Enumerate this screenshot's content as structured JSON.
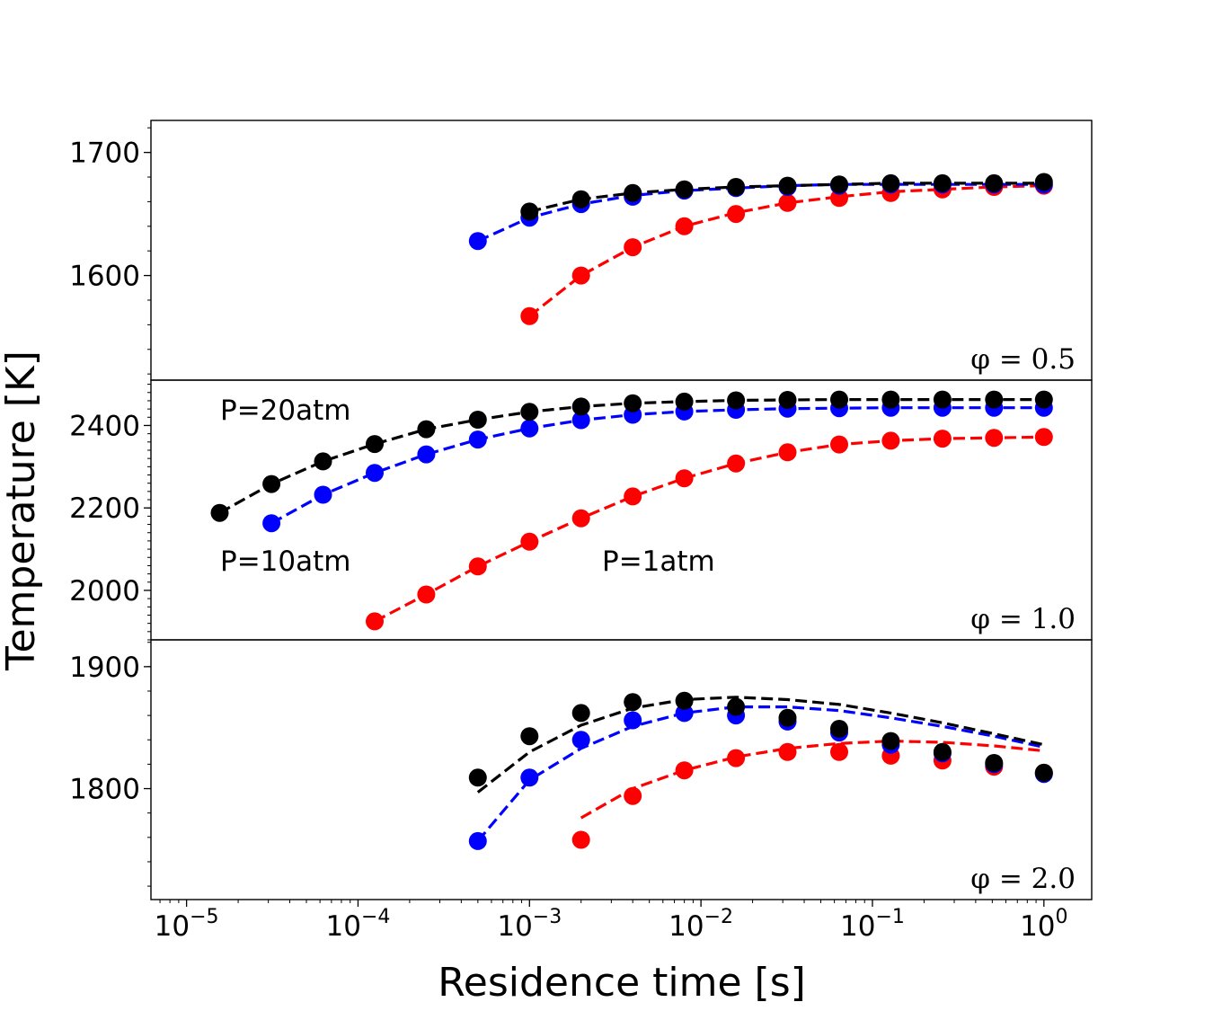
{
  "chart_data": {
    "type": "scatter",
    "xlabel": "Residence time [s]",
    "ylabel": "Temperature [K]",
    "xscale": "log",
    "xlim": [
      6.2e-06,
      1.9
    ],
    "x_ticks": [
      {
        "base": "10",
        "exp": "−5",
        "value": 1e-05
      },
      {
        "base": "10",
        "exp": "−4",
        "value": 0.0001
      },
      {
        "base": "10",
        "exp": "−3",
        "value": 0.001
      },
      {
        "base": "10",
        "exp": "−2",
        "value": 0.01
      },
      {
        "base": "10",
        "exp": "−1",
        "value": 0.1
      },
      {
        "base": "10",
        "exp": "0",
        "value": 1
      }
    ],
    "series_colors": {
      "P=1atm": "#ff0000",
      "P=10atm": "#0000ff",
      "P=20atm": "#000000"
    },
    "panels": [
      {
        "label": "φ = 0.5",
        "ylim": [
          1515,
          1726
        ],
        "yticks": [
          1600,
          1700
        ],
        "yticklabels": [
          "1600",
          "1700"
        ],
        "annotations": [],
        "series": [
          {
            "key": "P=1atm",
            "points": {
              "x": [
                0.001,
                0.002,
                0.004,
                0.008,
                0.016,
                0.032,
                0.064,
                0.128,
                0.256,
                0.512,
                1.0
              ],
              "y": [
                1567,
                1600,
                1623,
                1640,
                1650,
                1659,
                1663,
                1667,
                1670,
                1672,
                1673
              ]
            },
            "line": {
              "x": [
                0.001,
                0.002,
                0.004,
                0.008,
                0.016,
                0.032,
                0.064,
                0.128,
                0.256,
                0.512,
                1.0
              ],
              "y": [
                1567,
                1600,
                1623,
                1640,
                1651,
                1659,
                1664,
                1668,
                1670,
                1672,
                1673
              ]
            }
          },
          {
            "key": "P=10atm",
            "points": {
              "x": [
                0.0005,
                0.001,
                0.002,
                0.004,
                0.008,
                0.016,
                0.032,
                0.064,
                0.128,
                0.256,
                0.512,
                1.0
              ],
              "y": [
                1628,
                1647,
                1658,
                1664,
                1669,
                1671,
                1672,
                1673,
                1674,
                1674,
                1674,
                1674
              ]
            },
            "line": {
              "x": [
                0.0005,
                0.001,
                0.002,
                0.004,
                0.008,
                0.016,
                0.032,
                0.064,
                0.128,
                0.256,
                0.512,
                1.0
              ],
              "y": [
                1628,
                1647,
                1658,
                1665,
                1669,
                1671,
                1673,
                1674,
                1674,
                1674,
                1674,
                1674
              ]
            }
          },
          {
            "key": "P=20atm",
            "points": {
              "x": [
                0.001,
                0.002,
                0.004,
                0.008,
                0.016,
                0.032,
                0.064,
                0.128,
                0.256,
                0.512,
                1.0
              ],
              "y": [
                1652,
                1662,
                1667,
                1670,
                1672,
                1673,
                1674,
                1675,
                1675,
                1675,
                1676
              ]
            },
            "line": {
              "x": [
                0.001,
                0.002,
                0.004,
                0.008,
                0.016,
                0.032,
                0.064,
                0.128,
                0.256,
                0.512,
                1.0
              ],
              "y": [
                1652,
                1662,
                1667,
                1670,
                1672,
                1673,
                1674,
                1675,
                1675,
                1675,
                1675
              ]
            }
          }
        ]
      },
      {
        "label": "φ = 1.0",
        "ylim": [
          1880,
          2510
        ],
        "yticks": [
          2000,
          2200,
          2400
        ],
        "yticklabels": [
          "2000",
          "2200",
          "2400"
        ],
        "annotations": [
          "P=20atm",
          "P=10atm",
          "P=1atm"
        ],
        "series": [
          {
            "key": "P=1atm",
            "points": {
              "x": [
                0.000125,
                0.00025,
                0.0005,
                0.001,
                0.002,
                0.004,
                0.008,
                0.016,
                0.032,
                0.064,
                0.128,
                0.256,
                0.512,
                1.0
              ],
              "y": [
                1925,
                1990,
                2058,
                2118,
                2175,
                2228,
                2272,
                2308,
                2335,
                2354,
                2363,
                2368,
                2370,
                2372
              ]
            },
            "line": {
              "x": [
                0.000125,
                0.00025,
                0.0005,
                0.001,
                0.002,
                0.004,
                0.008,
                0.016,
                0.032,
                0.064,
                0.128,
                0.256,
                0.512,
                1.0
              ],
              "y": [
                1925,
                1990,
                2058,
                2118,
                2175,
                2228,
                2272,
                2308,
                2335,
                2354,
                2363,
                2368,
                2370,
                2372
              ]
            }
          },
          {
            "key": "P=10atm",
            "points": {
              "x": [
                3.125e-05,
                6.25e-05,
                0.000125,
                0.00025,
                0.0005,
                0.001,
                0.002,
                0.004,
                0.008,
                0.016,
                0.032,
                0.064,
                0.128,
                0.256,
                0.512,
                1.0
              ],
              "y": [
                2163,
                2232,
                2285,
                2330,
                2366,
                2393,
                2413,
                2426,
                2434,
                2438,
                2441,
                2442,
                2443,
                2443,
                2443,
                2443
              ]
            },
            "line": {
              "x": [
                3.125e-05,
                6.25e-05,
                0.000125,
                0.00025,
                0.0005,
                0.001,
                0.002,
                0.004,
                0.008,
                0.016,
                0.032,
                0.064,
                0.128,
                0.256,
                0.512,
                1.0
              ],
              "y": [
                2163,
                2232,
                2285,
                2330,
                2366,
                2393,
                2413,
                2426,
                2434,
                2438,
                2441,
                2442,
                2443,
                2443,
                2443,
                2443
              ]
            }
          },
          {
            "key": "P=20atm",
            "points": {
              "x": [
                1.56e-05,
                3.125e-05,
                6.25e-05,
                0.000125,
                0.00025,
                0.0005,
                0.001,
                0.002,
                0.004,
                0.008,
                0.016,
                0.032,
                0.064,
                0.128,
                0.256,
                0.512,
                1.0
              ],
              "y": [
                2188,
                2258,
                2313,
                2355,
                2391,
                2414,
                2433,
                2446,
                2454,
                2458,
                2461,
                2462,
                2463,
                2463,
                2463,
                2463,
                2463
              ]
            },
            "line": {
              "x": [
                1.56e-05,
                3.125e-05,
                6.25e-05,
                0.000125,
                0.00025,
                0.0005,
                0.001,
                0.002,
                0.004,
                0.008,
                0.016,
                0.032,
                0.064,
                0.128,
                0.256,
                0.512,
                1.0
              ],
              "y": [
                2188,
                2258,
                2313,
                2355,
                2391,
                2414,
                2433,
                2446,
                2454,
                2458,
                2461,
                2462,
                2463,
                2463,
                2463,
                2463,
                2463
              ]
            }
          }
        ]
      },
      {
        "label": "φ = 2.0",
        "ylim": [
          1709,
          1922
        ],
        "yticks": [
          1800,
          1900
        ],
        "yticklabels": [
          "1800",
          "1900"
        ],
        "annotations": [],
        "series": [
          {
            "key": "P=1atm",
            "points": {
              "x": [
                0.002,
                0.004,
                0.008,
                0.016,
                0.032,
                0.064,
                0.128,
                0.256,
                0.512,
                1.0
              ],
              "y": [
                1758,
                1794,
                1815,
                1825,
                1830,
                1830,
                1827,
                1823,
                1818,
                1813
              ]
            },
            "line": {
              "x": [
                0.002,
                0.004,
                0.008,
                0.016,
                0.032,
                0.064,
                0.128,
                0.256,
                0.512,
                1.0
              ],
              "y": [
                1776,
                1800,
                1815,
                1826,
                1833,
                1837,
                1839,
                1838,
                1835,
                1831
              ]
            }
          },
          {
            "key": "P=10atm",
            "points": {
              "x": [
                0.0005,
                0.001,
                0.002,
                0.004,
                0.008,
                0.016,
                0.032,
                0.064,
                0.128,
                0.256,
                0.512,
                1.0
              ],
              "y": [
                1757,
                1809,
                1840,
                1856,
                1862,
                1860,
                1855,
                1846,
                1836,
                1829,
                1820,
                1812
              ]
            },
            "line": {
              "x": [
                0.0005,
                0.001,
                0.002,
                0.004,
                0.008,
                0.016,
                0.032,
                0.064,
                0.128,
                0.256,
                0.512,
                1.0
              ],
              "y": [
                1757,
                1807,
                1833,
                1851,
                1862,
                1867,
                1867,
                1864,
                1858,
                1851,
                1843,
                1834
              ]
            }
          },
          {
            "key": "P=20atm",
            "points": {
              "x": [
                0.0005,
                0.001,
                0.002,
                0.004,
                0.008,
                0.016,
                0.032,
                0.064,
                0.128,
                0.256,
                0.512,
                1.0
              ],
              "y": [
                1809,
                1843,
                1862,
                1871,
                1872,
                1867,
                1858,
                1849,
                1839,
                1830,
                1821,
                1813
              ]
            },
            "line": {
              "x": [
                0.0005,
                0.001,
                0.002,
                0.004,
                0.008,
                0.016,
                0.032,
                0.064,
                0.128,
                0.256,
                0.512,
                1.0
              ],
              "y": [
                1797,
                1830,
                1852,
                1866,
                1873,
                1875,
                1873,
                1869,
                1862,
                1854,
                1845,
                1836
              ]
            }
          }
        ]
      }
    ]
  }
}
